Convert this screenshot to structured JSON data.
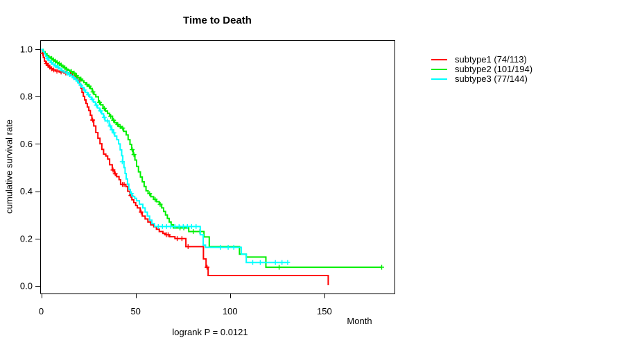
{
  "chart_data": {
    "type": "line",
    "variant": "kaplan-meier-step-survival",
    "title": "Time to Death",
    "xlabel": "Month",
    "ylabel": "cumulative survival rate",
    "annotation": "logrank P = 0.0121",
    "grid": false,
    "legend_position": "right-outside",
    "xlim": [
      0,
      187
    ],
    "ylim": [
      0,
      1.0
    ],
    "x_tick_values": [
      0,
      50,
      100,
      150
    ],
    "x_tick_labels": [
      "0",
      "50",
      "100",
      "150"
    ],
    "y_tick_values": [
      0.0,
      0.2,
      0.4,
      0.6,
      0.8,
      1.0
    ],
    "y_tick_labels": [
      "0.0",
      "0.2",
      "0.4",
      "0.6",
      "0.8",
      "1.0"
    ],
    "axis_color": "#000000",
    "series": [
      {
        "name": "subtype1",
        "label": "subtype1 (74/113)",
        "events": 74,
        "n": 113,
        "color": "#ff0000",
        "points": [
          [
            0,
            1.0
          ],
          [
            0.5,
            0.982
          ],
          [
            1.1,
            0.965
          ],
          [
            1.7,
            0.95
          ],
          [
            2.4,
            0.94
          ],
          [
            3.2,
            0.932
          ],
          [
            4,
            0.925
          ],
          [
            5,
            0.918
          ],
          [
            6,
            0.913
          ],
          [
            7.5,
            0.908
          ],
          [
            9.5,
            0.904
          ],
          [
            12,
            0.9
          ],
          [
            14.5,
            0.896
          ],
          [
            16.5,
            0.889
          ],
          [
            18,
            0.879
          ],
          [
            19.3,
            0.868
          ],
          [
            20.3,
            0.851
          ],
          [
            21,
            0.835
          ],
          [
            21.6,
            0.818
          ],
          [
            22.3,
            0.801
          ],
          [
            23,
            0.786
          ],
          [
            23.7,
            0.771
          ],
          [
            24.4,
            0.756
          ],
          [
            25.2,
            0.741
          ],
          [
            26,
            0.721
          ],
          [
            26.8,
            0.701
          ],
          [
            27.8,
            0.676
          ],
          [
            28.9,
            0.648
          ],
          [
            30,
            0.624
          ],
          [
            31.1,
            0.601
          ],
          [
            32.1,
            0.577
          ],
          [
            33,
            0.557
          ],
          [
            34.2,
            0.549
          ],
          [
            35.2,
            0.536
          ],
          [
            36.2,
            0.512
          ],
          [
            37.6,
            0.49
          ],
          [
            38.7,
            0.474
          ],
          [
            39.9,
            0.462
          ],
          [
            41.2,
            0.449
          ],
          [
            42,
            0.429
          ],
          [
            44.8,
            0.42
          ],
          [
            45.8,
            0.4
          ],
          [
            46.9,
            0.382
          ],
          [
            48,
            0.364
          ],
          [
            49,
            0.352
          ],
          [
            50,
            0.34
          ],
          [
            50.9,
            0.33
          ],
          [
            52.4,
            0.312
          ],
          [
            53.5,
            0.295
          ],
          [
            55,
            0.283
          ],
          [
            56.5,
            0.27
          ],
          [
            58,
            0.258
          ],
          [
            59.6,
            0.25
          ],
          [
            61,
            0.24
          ],
          [
            62.5,
            0.23
          ],
          [
            64.4,
            0.222
          ],
          [
            65.6,
            0.216
          ],
          [
            68,
            0.208
          ],
          [
            70.8,
            0.2
          ],
          [
            76.6,
            0.166
          ],
          [
            85.9,
            0.114
          ],
          [
            87.3,
            0.079
          ],
          [
            88.4,
            0.044
          ],
          [
            152,
            0.003
          ]
        ],
        "censor_marks": [
          [
            0.8,
            0.982
          ],
          [
            2.8,
            0.94
          ],
          [
            3.6,
            0.932
          ],
          [
            4.5,
            0.925
          ],
          [
            5.5,
            0.918
          ],
          [
            6.6,
            0.913
          ],
          [
            8.3,
            0.908
          ],
          [
            10.5,
            0.904
          ],
          [
            13,
            0.9
          ],
          [
            15.5,
            0.896
          ],
          [
            27.2,
            0.701
          ],
          [
            38,
            0.49
          ],
          [
            39.2,
            0.474
          ],
          [
            43,
            0.429
          ],
          [
            43.9,
            0.429
          ],
          [
            47.5,
            0.382
          ],
          [
            52.9,
            0.312
          ],
          [
            66.3,
            0.216
          ],
          [
            67.2,
            0.216
          ],
          [
            72,
            0.2
          ],
          [
            74.5,
            0.2
          ],
          [
            77.8,
            0.166
          ],
          [
            87.8,
            0.079
          ]
        ]
      },
      {
        "name": "subtype2",
        "label": "subtype2 (101/194)",
        "events": 101,
        "n": 194,
        "color": "#00ee00",
        "points": [
          [
            0,
            1.0
          ],
          [
            1,
            0.99
          ],
          [
            2,
            0.982
          ],
          [
            3,
            0.974
          ],
          [
            4,
            0.967
          ],
          [
            5,
            0.961
          ],
          [
            6,
            0.955
          ],
          [
            7,
            0.95
          ],
          [
            8,
            0.944
          ],
          [
            9,
            0.939
          ],
          [
            10,
            0.933
          ],
          [
            11,
            0.928
          ],
          [
            12,
            0.922
          ],
          [
            13,
            0.916
          ],
          [
            14,
            0.911
          ],
          [
            15.2,
            0.906
          ],
          [
            16.7,
            0.899
          ],
          [
            18,
            0.889
          ],
          [
            19.3,
            0.881
          ],
          [
            20.4,
            0.874
          ],
          [
            21.5,
            0.867
          ],
          [
            22.6,
            0.859
          ],
          [
            23.7,
            0.851
          ],
          [
            24.8,
            0.844
          ],
          [
            26,
            0.834
          ],
          [
            27,
            0.82
          ],
          [
            27.9,
            0.809
          ],
          [
            28.9,
            0.799
          ],
          [
            30.3,
            0.776
          ],
          [
            31.4,
            0.765
          ],
          [
            32.7,
            0.75
          ],
          [
            34,
            0.739
          ],
          [
            35.1,
            0.729
          ],
          [
            36.2,
            0.717
          ],
          [
            37.7,
            0.7
          ],
          [
            38.8,
            0.69
          ],
          [
            39.9,
            0.682
          ],
          [
            41,
            0.674
          ],
          [
            42.5,
            0.667
          ],
          [
            43.6,
            0.653
          ],
          [
            45,
            0.638
          ],
          [
            46,
            0.618
          ],
          [
            47,
            0.598
          ],
          [
            47.9,
            0.576
          ],
          [
            48.7,
            0.555
          ],
          [
            49.6,
            0.532
          ],
          [
            50.5,
            0.505
          ],
          [
            51.5,
            0.482
          ],
          [
            52.5,
            0.46
          ],
          [
            53.5,
            0.44
          ],
          [
            54.5,
            0.42
          ],
          [
            55.5,
            0.402
          ],
          [
            56.6,
            0.39
          ],
          [
            58,
            0.377
          ],
          [
            59.5,
            0.366
          ],
          [
            61,
            0.356
          ],
          [
            62.5,
            0.345
          ],
          [
            63.8,
            0.33
          ],
          [
            64.8,
            0.315
          ],
          [
            65.8,
            0.3
          ],
          [
            66.8,
            0.285
          ],
          [
            67.8,
            0.27
          ],
          [
            68.8,
            0.258
          ],
          [
            70,
            0.245
          ],
          [
            78.1,
            0.23
          ],
          [
            86.2,
            0.207
          ],
          [
            89,
            0.166
          ],
          [
            105,
            0.134
          ],
          [
            108.6,
            0.122
          ],
          [
            119,
            0.079
          ],
          [
            180.3,
            0.079
          ]
        ],
        "censor_marks": [
          [
            5.5,
            0.961
          ],
          [
            6.5,
            0.955
          ],
          [
            7.5,
            0.95
          ],
          [
            8.5,
            0.944
          ],
          [
            9.6,
            0.939
          ],
          [
            10.6,
            0.933
          ],
          [
            12.5,
            0.922
          ],
          [
            13.5,
            0.916
          ],
          [
            16,
            0.906
          ],
          [
            17.4,
            0.899
          ],
          [
            18.7,
            0.889
          ],
          [
            21,
            0.874
          ],
          [
            24.2,
            0.851
          ],
          [
            25.4,
            0.844
          ],
          [
            27.4,
            0.82
          ],
          [
            30.9,
            0.776
          ],
          [
            33.4,
            0.75
          ],
          [
            36.8,
            0.717
          ],
          [
            38.3,
            0.7
          ],
          [
            40.5,
            0.682
          ],
          [
            41.8,
            0.674
          ],
          [
            43.1,
            0.667
          ],
          [
            48.2,
            0.576
          ],
          [
            49.1,
            0.555
          ],
          [
            57.4,
            0.39
          ],
          [
            60.3,
            0.366
          ],
          [
            63,
            0.345
          ],
          [
            73.5,
            0.245
          ],
          [
            75.5,
            0.245
          ],
          [
            80.5,
            0.23
          ],
          [
            84,
            0.23
          ],
          [
            126,
            0.079
          ],
          [
            180.3,
            0.079
          ]
        ]
      },
      {
        "name": "subtype3",
        "label": "subtype3 (77/144)",
        "events": 77,
        "n": 144,
        "color": "#00ffff",
        "points": [
          [
            0,
            1.0
          ],
          [
            0.8,
            0.991
          ],
          [
            1.6,
            0.981
          ],
          [
            2.3,
            0.97
          ],
          [
            3.1,
            0.96
          ],
          [
            4,
            0.952
          ],
          [
            5,
            0.944
          ],
          [
            6,
            0.937
          ],
          [
            7,
            0.93
          ],
          [
            8.3,
            0.924
          ],
          [
            9.5,
            0.917
          ],
          [
            10.7,
            0.91
          ],
          [
            12,
            0.904
          ],
          [
            13.4,
            0.899
          ],
          [
            14.5,
            0.893
          ],
          [
            15.6,
            0.887
          ],
          [
            16.7,
            0.88
          ],
          [
            17.8,
            0.873
          ],
          [
            18.9,
            0.866
          ],
          [
            19.6,
            0.857
          ],
          [
            20.4,
            0.848
          ],
          [
            21.5,
            0.839
          ],
          [
            22.6,
            0.828
          ],
          [
            23.4,
            0.818
          ],
          [
            24.5,
            0.808
          ],
          [
            25.6,
            0.798
          ],
          [
            26.6,
            0.789
          ],
          [
            27.6,
            0.777
          ],
          [
            28.7,
            0.764
          ],
          [
            29.8,
            0.752
          ],
          [
            30.9,
            0.74
          ],
          [
            32,
            0.727
          ],
          [
            33,
            0.712
          ],
          [
            33.8,
            0.697
          ],
          [
            36,
            0.676
          ],
          [
            37,
            0.66
          ],
          [
            38.1,
            0.647
          ],
          [
            38.9,
            0.633
          ],
          [
            40,
            0.618
          ],
          [
            41,
            0.6
          ],
          [
            41.8,
            0.575
          ],
          [
            42.6,
            0.55
          ],
          [
            43.2,
            0.525
          ],
          [
            43.8,
            0.5
          ],
          [
            44.4,
            0.475
          ],
          [
            45,
            0.452
          ],
          [
            45.7,
            0.43
          ],
          [
            46.4,
            0.408
          ],
          [
            47.2,
            0.39
          ],
          [
            48.2,
            0.378
          ],
          [
            49.5,
            0.37
          ],
          [
            50.5,
            0.36
          ],
          [
            52,
            0.345
          ],
          [
            53.8,
            0.33
          ],
          [
            55,
            0.312
          ],
          [
            56.2,
            0.295
          ],
          [
            57.4,
            0.278
          ],
          [
            58.6,
            0.263
          ],
          [
            60,
            0.251
          ],
          [
            84.2,
            0.216
          ],
          [
            85.8,
            0.172
          ],
          [
            87,
            0.163
          ],
          [
            106,
            0.134
          ],
          [
            108.6,
            0.099
          ],
          [
            130.5,
            0.099
          ]
        ],
        "censor_marks": [
          [
            3.5,
            0.96
          ],
          [
            5.4,
            0.944
          ],
          [
            7.5,
            0.93
          ],
          [
            9,
            0.924
          ],
          [
            11,
            0.91
          ],
          [
            13.8,
            0.899
          ],
          [
            15,
            0.893
          ],
          [
            17.2,
            0.88
          ],
          [
            19.2,
            0.866
          ],
          [
            21,
            0.848
          ],
          [
            23,
            0.828
          ],
          [
            25,
            0.808
          ],
          [
            27,
            0.789
          ],
          [
            29.2,
            0.764
          ],
          [
            31.4,
            0.74
          ],
          [
            33.4,
            0.712
          ],
          [
            35,
            0.697
          ],
          [
            36.5,
            0.676
          ],
          [
            37.5,
            0.66
          ],
          [
            38.5,
            0.647
          ],
          [
            42.9,
            0.525
          ],
          [
            47.8,
            0.39
          ],
          [
            62,
            0.251
          ],
          [
            64.2,
            0.251
          ],
          [
            66.4,
            0.251
          ],
          [
            68.6,
            0.251
          ],
          [
            70.8,
            0.251
          ],
          [
            73,
            0.251
          ],
          [
            75.2,
            0.251
          ],
          [
            77.4,
            0.251
          ],
          [
            79.6,
            0.251
          ],
          [
            82,
            0.251
          ],
          [
            95,
            0.163
          ],
          [
            99,
            0.163
          ],
          [
            102,
            0.163
          ],
          [
            112,
            0.099
          ],
          [
            116,
            0.099
          ],
          [
            124,
            0.099
          ],
          [
            127.5,
            0.099
          ],
          [
            130.5,
            0.099
          ]
        ]
      }
    ]
  }
}
